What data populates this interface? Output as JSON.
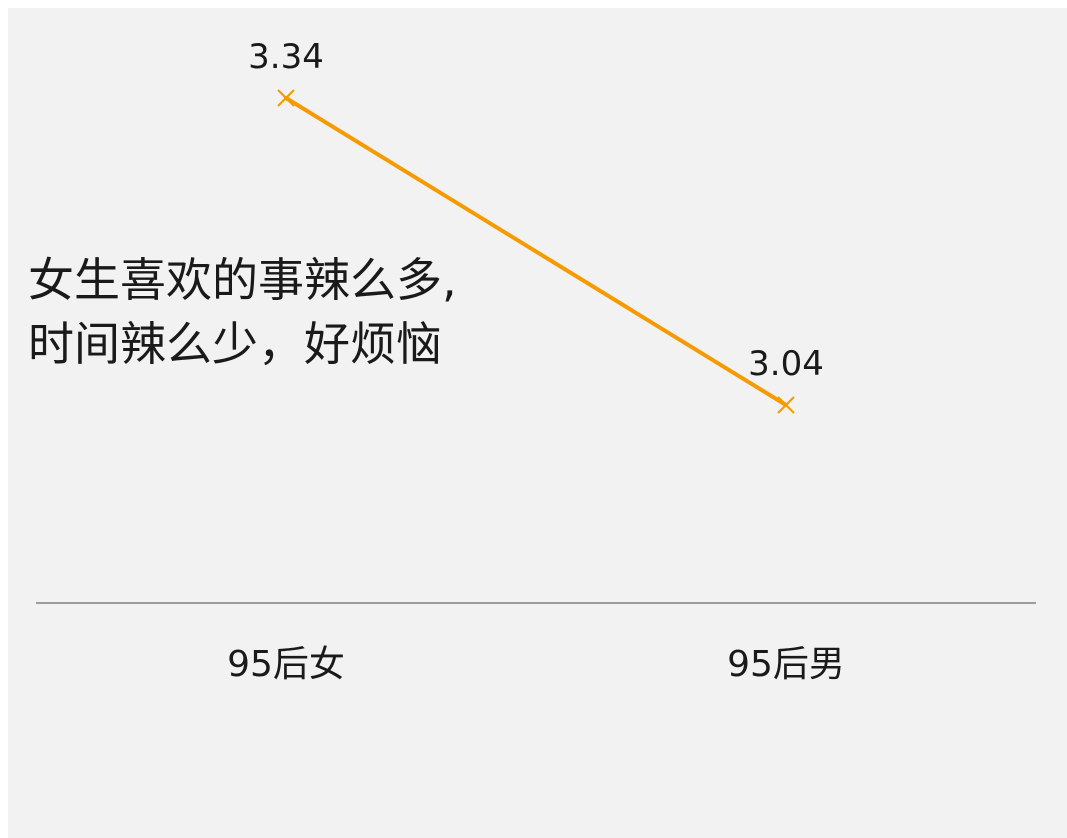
{
  "chart_data": {
    "type": "line",
    "categories": [
      "95后女",
      "95后男"
    ],
    "series": [
      {
        "values": [
          3.34,
          3.04
        ]
      }
    ],
    "data_labels": [
      "3.34",
      "3.04"
    ],
    "marker": "x",
    "grid": false,
    "colors": {
      "series": "#f59a00",
      "axis": "#7f7f7f",
      "background": "#f2f2f2",
      "text": "#1a1a1a"
    }
  },
  "annotation": {
    "line1": "女生喜欢的事辣么多,",
    "line2": "时间辣么少，好烦恼"
  }
}
